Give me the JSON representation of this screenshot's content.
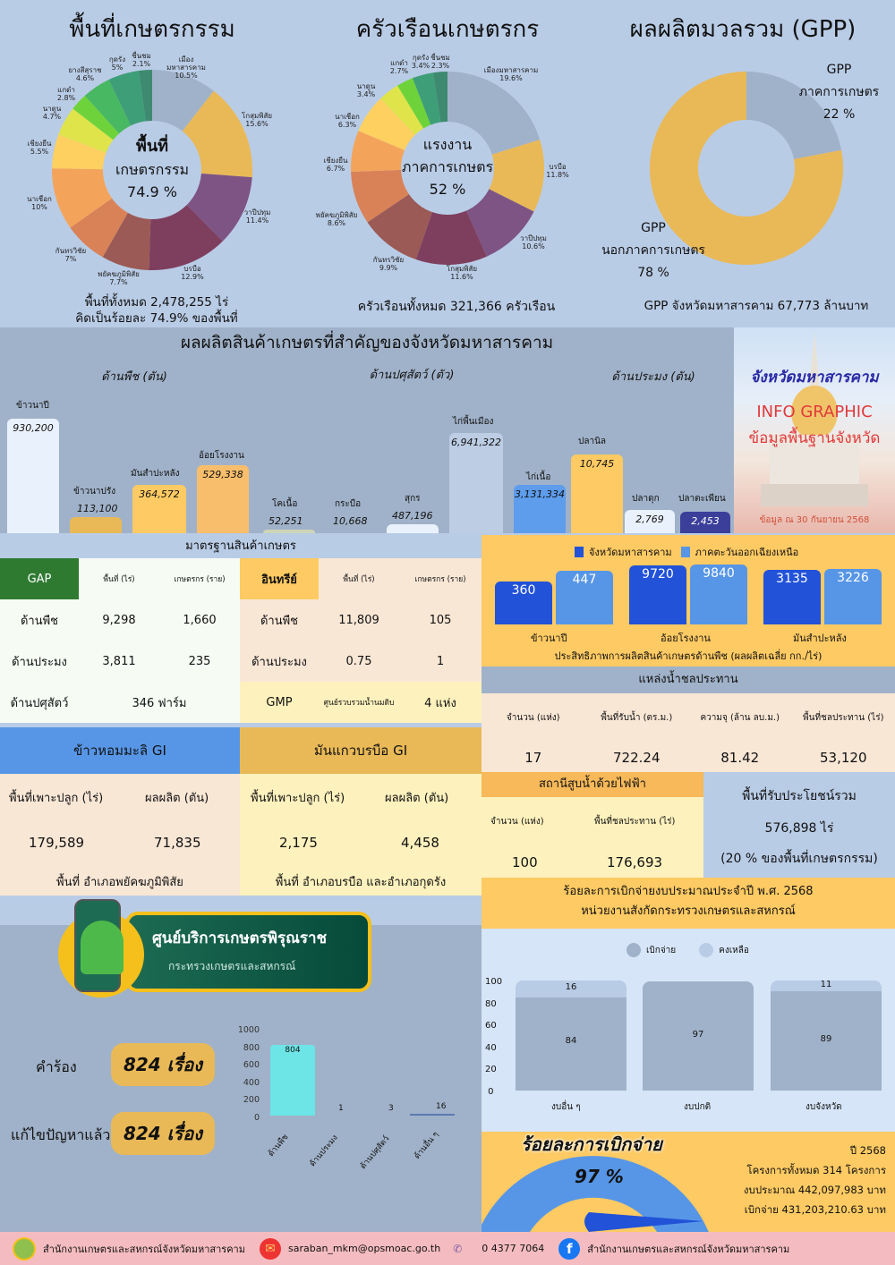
{
  "titles": {
    "area": "พื้นที่เกษตรกรรม",
    "households": "ครัวเรือนเกษตรกร",
    "gpp": "ผลผลิตมวลรวม (GPP)"
  },
  "area": {
    "center": [
      "พื้นที่",
      "เกษตรกรรม",
      "74.9 %"
    ],
    "footer1": "พื้นที่ทั้งหมด 2,478,255 ไร่",
    "footer2": "คิดเป็นร้อยละ 74.9% ของพื้นที่"
  },
  "households": {
    "center": [
      "แรงงาน",
      "ภาคการเกษตร",
      "52 %"
    ],
    "footer": "ครัวเรือนทั้งหมด 321,366 ครัวเรือน"
  },
  "gpp": {
    "agri_label": [
      "GPP",
      "ภาคการเกษตร",
      "22 %"
    ],
    "nonagri_label": [
      "GPP",
      "นอกภาคการเกษตร",
      "78 %"
    ],
    "footer": "GPP จังหวัดมหาสารคาม 67,773 ล้านบาท"
  },
  "production": {
    "title": "ผลผลิตสินค้าเกษตรที่สำคัญของจังหวัดมหาสารคาม",
    "cat_crop": "ด้านพืช (ตัน)",
    "cat_livestock": "ด้านปศุสัตว์ (ตัว)",
    "cat_fishery": "ด้านประมง (ตัน)"
  },
  "banner": {
    "province": "จังหวัดมหาสารคาม",
    "info": "INFO GRAPHIC",
    "sub": "ข้อมูลพื้นฐานจังหวัด",
    "date": "ข้อมูล ณ 30 กันยายน 2568"
  },
  "standards": {
    "title": "มาตรฐานสินค้าเกษตร",
    "gap": "GAP",
    "organic": "อินทรีย์",
    "col_area": "พื้นที่ (ไร่)",
    "col_farmers": "เกษตรกร (ราย)",
    "crop": "ด้านพืช",
    "fishery": "ด้านประมง",
    "livestock": "ด้านปศุสัตว์",
    "gap_crop_area": "9,298",
    "gap_crop_farmers": "1,660",
    "gap_fish_area": "3,811",
    "gap_fish_farmers": "235",
    "gap_livestock": "346 ฟาร์ม",
    "org_crop_area": "11,809",
    "org_crop_farmers": "105",
    "org_fish_area": "0.75",
    "org_fish_farmers": "1",
    "gmp": "GMP",
    "gmp_center": "ศูนย์รวบรวมน้ำนมดิบ",
    "gmp_count": "4 แห่ง"
  },
  "gi": {
    "rice_title": "ข้าวหอมมะลิ GI",
    "cassava_title": "มันแกวบรบือ GI",
    "col_area": "พื้นที่เพาะปลูก (ไร่)",
    "col_yield": "ผลผลิต (ตัน)",
    "rice_area": "179,589",
    "rice_yield": "71,835",
    "rice_loc": "พื้นที่ อำเภอพยัคฆภูมิพิสัย",
    "cassava_area": "2,175",
    "cassava_yield": "4,458",
    "cassava_loc": "พื้นที่ อำเภอบรบือ และอำเภอกุดรัง"
  },
  "efficiency": {
    "legend_a": "จังหวัดมหาสารคาม",
    "legend_b": "ภาคตะวันออกเฉียงเหนือ",
    "caption": "ประสิทธิภาพการผลิตสินค้าเกษตรด้านพืช (ผลผลิตเฉลี่ย กก./ไร่)"
  },
  "irrigation": {
    "title": "แหล่งน้ำชลประทาน",
    "headers": [
      "จำนวน (แห่ง)",
      "พื้นที่รับน้ำ (ตร.ม.)",
      "ความจุ (ล้าน ลบ.ม.)",
      "พื้นที่ชลประทาน (ไร่)"
    ],
    "values": [
      "17",
      "722.24",
      "81.42",
      "53,120"
    ]
  },
  "pump": {
    "title": "สถานีสูบน้ำด้วยไฟฟ้า",
    "headers": [
      "จำนวน (แห่ง)",
      "พื้นที่ชลประทาน (ไร่)"
    ],
    "values": [
      "100",
      "176,693"
    ]
  },
  "benefit": {
    "title": "พื้นที่รับประโยชน์รวม",
    "value": "576,898 ไร่",
    "note": "(20 % ของพื้นที่เกษตรกรรม)"
  },
  "budget": {
    "title1": "ร้อยละการเบิกจ่ายงบประมาณประจำปี พ.ศ. 2568",
    "title2": "หน่วยงานสังกัดกระทรวงเกษตรและสหกรณ์",
    "legend_spent": "เบิกจ่าย",
    "legend_left": "คงเหลือ"
  },
  "gauge": {
    "title": "ร้อยละการเบิกจ่าย",
    "value": "97 %",
    "year": "ปี 2568",
    "projects": "โครงการทั้งหมด 314 โครงการ",
    "budget": "งบประมาณ 442,097,983 บาท",
    "spent": "เบิกจ่าย 431,203,210.63 บาท"
  },
  "service": {
    "name": "ศูนย์บริการเกษตรพิรุณราช",
    "ministry": "กระทรวงเกษตรและสหกรณ์",
    "requests_label": "คำร้อง",
    "requests_value": "824 เรื่อง",
    "solved_label": "แก้ไขปัญหาแล้ว",
    "solved_value": "824 เรื่อง"
  },
  "footer": {
    "office": "สำนักงานเกษตรและสหกรณ์จังหวัดมหาสารคาม",
    "email": "saraban_mkm@opsmoac.go.th",
    "phone": "0 4377 7064",
    "facebook": "สำนักงานเกษตรและสหกรณ์จังหวัดมหาสารคาม"
  },
  "chart_data": [
    {
      "type": "pie",
      "title": "พื้นที่เกษตรกรรม",
      "categories": [
        "เมืองมหาสารคาม",
        "โกสุมพิสัย",
        "วาปีปทุม",
        "บรบือ",
        "พยัคฆภูมิพิสัย",
        "กันทรวิชัย",
        "นาเชือก",
        "เชียงยืน",
        "นาดูน",
        "แกดำ",
        "ยางสีสุราช",
        "กุดรัง",
        "ชื่นชม"
      ],
      "values": [
        10.5,
        15.6,
        11.4,
        12.9,
        7.7,
        7,
        10,
        5.5,
        4.7,
        2.8,
        4.6,
        5,
        2.1
      ]
    },
    {
      "type": "pie",
      "title": "ครัวเรือนเกษตรกร",
      "categories": [
        "เมืองมหาสารคาม",
        "บรบือ",
        "วาปีปทุม",
        "โกสุมพิสัย",
        "กันทรวิชัย",
        "พยัคฆภูมิพิสัย",
        "เชียงยืน",
        "นาเชือก",
        "นาดูน",
        "แกดำ",
        "กุดรัง",
        "ชื่นชม"
      ],
      "values": [
        19.6,
        11.8,
        10.6,
        11.6,
        9.9,
        8.6,
        6.7,
        6.3,
        3.4,
        2.7,
        3.4,
        2.3
      ]
    },
    {
      "type": "pie",
      "title": "ผลผลิตมวลรวม (GPP)",
      "categories": [
        "GPP ภาคการเกษตร",
        "GPP นอกภาคการเกษตร"
      ],
      "values": [
        22,
        78
      ]
    },
    {
      "type": "bar",
      "title": "ผลผลิตสินค้าเกษตรที่สำคัญของจังหวัดมหาสารคาม",
      "groups": [
        {
          "name": "ด้านพืช (ตัน)",
          "categories": [
            "ข้าวนาปี",
            "ข้าวนาปรัง",
            "มันสำปะหลัง",
            "อ้อยโรงงาน"
          ],
          "values": [
            "930,200",
            "113,100",
            "364,572",
            "529,338"
          ]
        },
        {
          "name": "ด้านปศุสัตว์ (ตัว)",
          "categories": [
            "โคเนื้อ",
            "กระบือ",
            "สุกร",
            "ไก่พื้นเมือง",
            "ไก่เนื้อ"
          ],
          "values": [
            "52,251",
            "10,668",
            "487,196",
            "6,941,322",
            "3,131,334"
          ]
        },
        {
          "name": "ด้านประมง (ตัน)",
          "categories": [
            "ปลานิล",
            "ปลาดุก",
            "ปลาตะเพียน"
          ],
          "values": [
            "10,745",
            "2,769",
            "2,453"
          ]
        }
      ]
    },
    {
      "type": "bar",
      "title": "ประสิทธิภาพการผลิตสินค้าเกษตรด้านพืช (ผลผลิตเฉลี่ย กก./ไร่)",
      "categories": [
        "ข้าวนาปี",
        "อ้อยโรงงาน",
        "มันสำปะหลัง"
      ],
      "series": [
        {
          "name": "จังหวัดมหาสารคาม",
          "values": [
            360,
            9720,
            3135
          ]
        },
        {
          "name": "ภาคตะวันออกเฉียงเหนือ",
          "values": [
            447,
            9840,
            3226
          ]
        }
      ]
    },
    {
      "type": "bar",
      "title": "ร้อยละการเบิกจ่ายงบประมาณประจำปี พ.ศ. 2568",
      "stacked": true,
      "categories": [
        "งบอื่น ๆ",
        "งบปกติ",
        "งบจังหวัด"
      ],
      "series": [
        {
          "name": "เบิกจ่าย",
          "values": [
            84,
            97,
            89
          ]
        },
        {
          "name": "คงเหลือ",
          "values": [
            16,
            3,
            11
          ]
        }
      ],
      "ylim": [
        0,
        100
      ],
      "yticks": [
        0,
        20,
        40,
        60,
        80,
        100
      ]
    },
    {
      "type": "bar",
      "title": "คำร้องศูนย์บริการเกษตรพิรุณราช",
      "categories": [
        "ด้านพืช",
        "ด้านประมง",
        "ด้านปศุสัตว์",
        "ด้านอื่น ๆ"
      ],
      "values": [
        804,
        1,
        3,
        16
      ],
      "ylim": [
        0,
        1000
      ],
      "yticks": [
        0,
        200,
        400,
        600,
        800,
        1000
      ]
    }
  ]
}
